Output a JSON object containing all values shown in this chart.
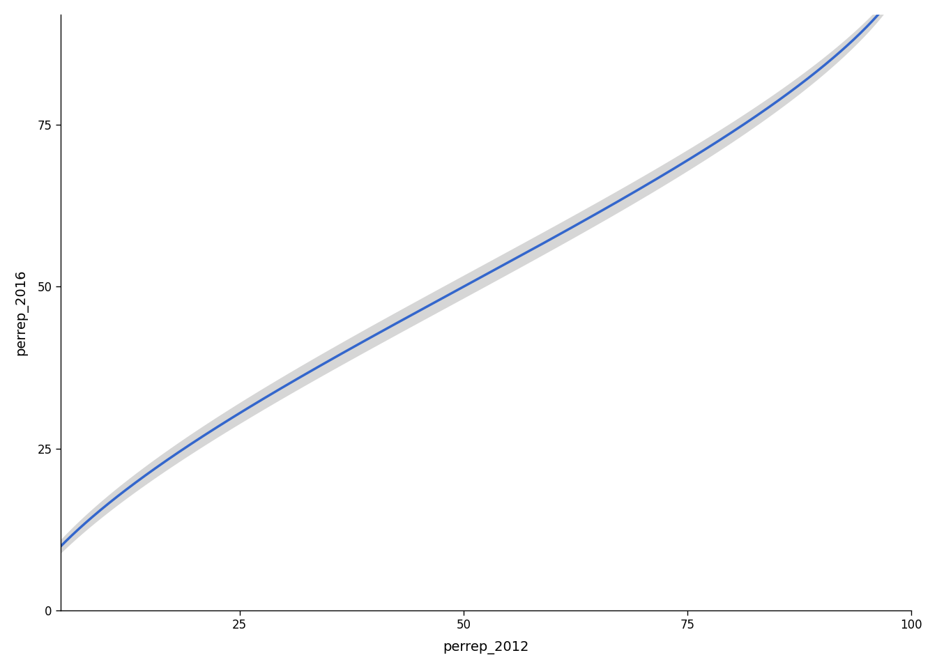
{
  "title": "",
  "xlabel": "perrep_2012",
  "ylabel": "perrep_2016",
  "xlim": [
    5,
    100
  ],
  "ylim": [
    0,
    92
  ],
  "xticks": [
    25,
    50,
    75,
    100
  ],
  "yticks": [
    0,
    25,
    50,
    75
  ],
  "line_color": "#3366CC",
  "ci_color": "#BBBBBB",
  "ci_alpha": 0.6,
  "line_width": 2.5,
  "background_color": "#FFFFFF",
  "xlabel_fontsize": 14,
  "ylabel_fontsize": 14,
  "tick_fontsize": 12,
  "x_start": 5,
  "x_end": 98,
  "curve_a": 1.6,
  "curve_b": 0.62,
  "ci_scale": 1.8
}
